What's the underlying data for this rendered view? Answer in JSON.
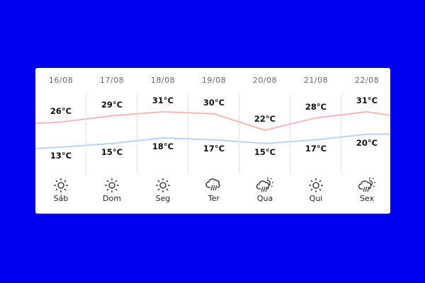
{
  "days": [
    {
      "date": "16/08",
      "day": "Sáb",
      "high": 26,
      "low": 13,
      "high_label": "26°C",
      "low_label": "13°C",
      "icon": "sun-icon"
    },
    {
      "date": "17/08",
      "day": "Dom",
      "high": 29,
      "low": 15,
      "high_label": "29°C",
      "low_label": "15°C",
      "icon": "sun-icon"
    },
    {
      "date": "18/08",
      "day": "Seg",
      "high": 31,
      "low": 18,
      "high_label": "31°C",
      "low_label": "18°C",
      "icon": "sun-icon"
    },
    {
      "date": "19/08",
      "day": "Ter",
      "high": 30,
      "low": 17,
      "high_label": "30°C",
      "low_label": "17°C",
      "icon": "rain-cloud-icon"
    },
    {
      "date": "20/08",
      "day": "Qua",
      "high": 22,
      "low": 15,
      "high_label": "22°C",
      "low_label": "15°C",
      "icon": "sun-rain-cloud-icon"
    },
    {
      "date": "21/08",
      "day": "Qui",
      "high": 28,
      "low": 17,
      "high_label": "28°C",
      "low_label": "17°C",
      "icon": "sun-icon"
    },
    {
      "date": "22/08",
      "day": "Sex",
      "high": 31,
      "low": 20,
      "high_label": "31°C",
      "low_label": "20°C",
      "icon": "sun-rain-cloud-icon"
    }
  ],
  "colors": {
    "background": "#0000f0",
    "high_line": "#f0b8b8",
    "low_line": "#b8d4ee"
  }
}
